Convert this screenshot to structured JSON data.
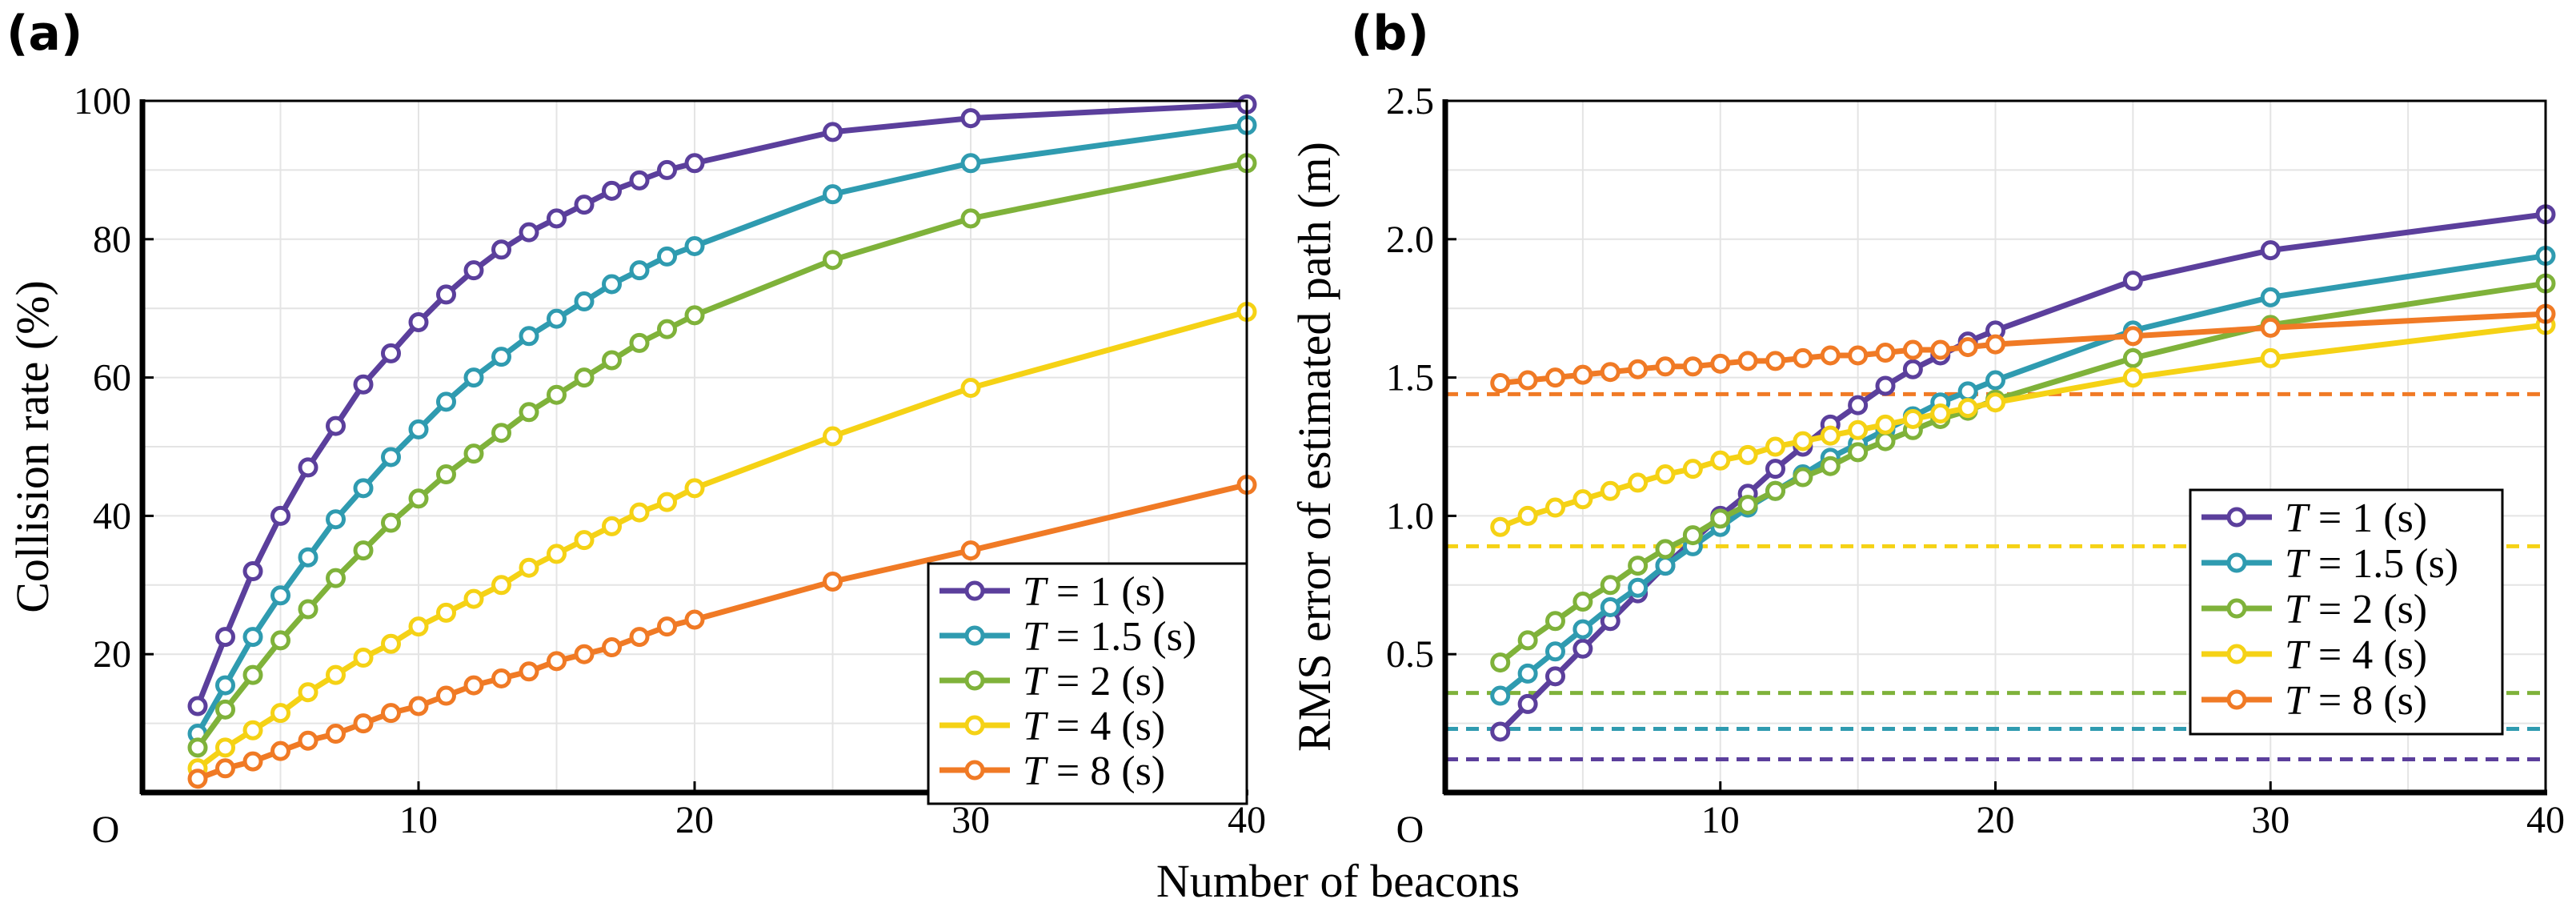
{
  "figure": {
    "shared_xlabel": "Number of beacons",
    "colors": {
      "T=1": "#5b3f9c",
      "T=1.5": "#2f9bb0",
      "T=2": "#7fb23a",
      "T=4": "#f5d215",
      "T=8": "#f07a25"
    }
  },
  "chart_data": [
    {
      "panel": "(a)",
      "type": "line",
      "title": "",
      "xlabel": "Number of beacons",
      "ylabel": "Collision rate (%)",
      "xlim": [
        0,
        40
      ],
      "ylim": [
        0,
        100
      ],
      "xticks": [
        10,
        20,
        30,
        40
      ],
      "yticks": [
        20,
        40,
        60,
        80,
        100
      ],
      "origin_label": "O",
      "legend_position": "bottom-right",
      "x": [
        2,
        3,
        4,
        5,
        6,
        7,
        8,
        9,
        10,
        11,
        12,
        13,
        14,
        15,
        16,
        17,
        18,
        19,
        20,
        25,
        30,
        40
      ],
      "series": [
        {
          "name": "T = 1 (s)",
          "T": "1",
          "unit": "(s)",
          "key": "T=1",
          "values": [
            12.5,
            22.5,
            32,
            40,
            47,
            53,
            59,
            63.5,
            68,
            72,
            75.5,
            78.5,
            81,
            83,
            85,
            87,
            88.5,
            90,
            91,
            95.5,
            97.5,
            99.5
          ]
        },
        {
          "name": "T = 1.5 (s)",
          "T": "1.5",
          "unit": "(s)",
          "key": "T=1.5",
          "values": [
            8.5,
            15.5,
            22.5,
            28.5,
            34,
            39.5,
            44,
            48.5,
            52.5,
            56.5,
            60,
            63,
            66,
            68.5,
            71,
            73.5,
            75.5,
            77.5,
            79,
            86.5,
            91,
            96.5
          ]
        },
        {
          "name": "T = 2 (s)",
          "T": "2",
          "unit": "(s)",
          "key": "T=2",
          "values": [
            6.5,
            12,
            17,
            22,
            26.5,
            31,
            35,
            39,
            42.5,
            46,
            49,
            52,
            55,
            57.5,
            60,
            62.5,
            65,
            67,
            69,
            77,
            83,
            91
          ]
        },
        {
          "name": "T = 4 (s)",
          "T": "4",
          "unit": "(s)",
          "key": "T=4",
          "values": [
            3.5,
            6.5,
            9,
            11.5,
            14.5,
            17,
            19.5,
            21.5,
            24,
            26,
            28,
            30,
            32.5,
            34.5,
            36.5,
            38.5,
            40.5,
            42,
            44,
            51.5,
            58.5,
            69.5
          ]
        },
        {
          "name": "T = 8 (s)",
          "T": "8",
          "unit": "(s)",
          "key": "T=8",
          "values": [
            2,
            3.5,
            4.5,
            6,
            7.5,
            8.5,
            10,
            11.5,
            12.5,
            14,
            15.5,
            16.5,
            17.5,
            19,
            20,
            21,
            22.5,
            24,
            25,
            30.5,
            35,
            44.5
          ]
        }
      ]
    },
    {
      "panel": "(b)",
      "type": "line",
      "title": "",
      "xlabel": "Number of beacons",
      "ylabel": "RMS error of estimated path (m)",
      "xlim": [
        0,
        40
      ],
      "ylim": [
        0,
        2.5
      ],
      "xticks": [
        10,
        20,
        30,
        40
      ],
      "yticks": [
        0.5,
        1.0,
        1.5,
        2.0,
        2.5
      ],
      "ytick_labels": [
        "0.5",
        "1.0",
        "1.5",
        "2.0",
        "2.5"
      ],
      "origin_label": "O",
      "legend_position": "center-right",
      "x": [
        2,
        3,
        4,
        5,
        6,
        7,
        8,
        9,
        10,
        11,
        12,
        13,
        14,
        15,
        16,
        17,
        18,
        19,
        20,
        25,
        30,
        40
      ],
      "series": [
        {
          "name": "T = 1 (s)",
          "T": "1",
          "unit": "(s)",
          "key": "T=1",
          "baseline": 0.12,
          "values": [
            0.22,
            0.32,
            0.42,
            0.52,
            0.62,
            0.72,
            0.82,
            0.91,
            1.0,
            1.08,
            1.17,
            1.25,
            1.33,
            1.4,
            1.47,
            1.53,
            1.58,
            1.63,
            1.67,
            1.85,
            1.96,
            2.09
          ]
        },
        {
          "name": "T = 1.5 (s)",
          "T": "1.5",
          "unit": "(s)",
          "key": "T=1.5",
          "baseline": 0.23,
          "values": [
            0.35,
            0.43,
            0.51,
            0.59,
            0.67,
            0.74,
            0.82,
            0.89,
            0.96,
            1.03,
            1.09,
            1.15,
            1.21,
            1.26,
            1.31,
            1.36,
            1.41,
            1.45,
            1.49,
            1.67,
            1.79,
            1.94
          ]
        },
        {
          "name": "T = 2 (s)",
          "T": "2",
          "unit": "(s)",
          "key": "T=2",
          "baseline": 0.36,
          "values": [
            0.47,
            0.55,
            0.62,
            0.69,
            0.75,
            0.82,
            0.88,
            0.93,
            0.99,
            1.04,
            1.09,
            1.14,
            1.18,
            1.23,
            1.27,
            1.31,
            1.35,
            1.38,
            1.42,
            1.57,
            1.69,
            1.84
          ]
        },
        {
          "name": "T = 4 (s)",
          "T": "4",
          "unit": "(s)",
          "key": "T=4",
          "baseline": 0.89,
          "values": [
            0.96,
            1.0,
            1.03,
            1.06,
            1.09,
            1.12,
            1.15,
            1.17,
            1.2,
            1.22,
            1.25,
            1.27,
            1.29,
            1.31,
            1.33,
            1.35,
            1.37,
            1.39,
            1.41,
            1.5,
            1.57,
            1.69
          ]
        },
        {
          "name": "T = 8 (s)",
          "T": "8",
          "unit": "(s)",
          "key": "T=8",
          "baseline": 1.44,
          "values": [
            1.48,
            1.49,
            1.5,
            1.51,
            1.52,
            1.53,
            1.54,
            1.54,
            1.55,
            1.56,
            1.56,
            1.57,
            1.58,
            1.58,
            1.59,
            1.6,
            1.6,
            1.61,
            1.62,
            1.65,
            1.68,
            1.73
          ]
        }
      ]
    }
  ]
}
